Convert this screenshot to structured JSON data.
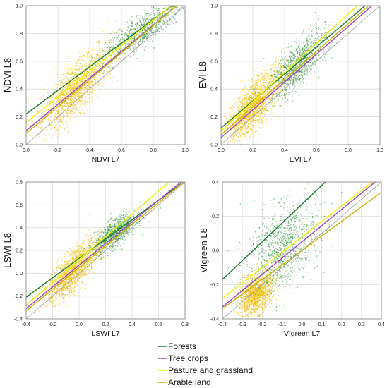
{
  "legend": {
    "placement": "bottom-center",
    "items": [
      {
        "label": "Forests",
        "color": "#1a7a2a"
      },
      {
        "label": "Tree crops",
        "color": "#a040c8"
      },
      {
        "label": "Pasture and grassland",
        "color": "#f2f200"
      },
      {
        "label": "Arable land",
        "color": "#c8b400"
      }
    ]
  },
  "chart_data": [
    {
      "type": "scatter",
      "xlabel": "NDVI L7",
      "ylabel": "NDVI L8",
      "xlim": [
        0.0,
        1.0
      ],
      "ylim": [
        0.0,
        1.0
      ],
      "xticks": [
        "0.0",
        "0.2",
        "0.4",
        "0.6",
        "0.8",
        "1.0"
      ],
      "yticks": [
        "0.0",
        "0.2",
        "0.4",
        "0.6",
        "0.8",
        "1.0"
      ],
      "grid": true,
      "reference_line": "1:1",
      "series": [
        {
          "name": "Forests",
          "slope": 0.85,
          "intercept": 0.22
        },
        {
          "name": "Tree crops",
          "slope": 0.95,
          "intercept": 0.1
        },
        {
          "name": "Pasture and grassland",
          "slope": 0.92,
          "intercept": 0.16
        },
        {
          "name": "Arable land",
          "slope": 0.97,
          "intercept": 0.08
        }
      ]
    },
    {
      "type": "scatter",
      "xlabel": "EVI L7",
      "ylabel": "EVI L8",
      "xlim": [
        0.0,
        1.0
      ],
      "ylim": [
        0.0,
        1.0
      ],
      "xticks": [
        "0.0",
        "0.2",
        "0.4",
        "0.6",
        "0.8",
        "1.0"
      ],
      "yticks": [
        "0.0",
        "0.2",
        "0.4",
        "0.6",
        "0.8",
        "1.0"
      ],
      "grid": true,
      "reference_line": "1:1",
      "series": [
        {
          "name": "Forests",
          "slope": 0.97,
          "intercept": 0.12
        },
        {
          "name": "Tree crops",
          "slope": 1.0,
          "intercept": 0.05
        },
        {
          "name": "Pasture and grassland",
          "slope": 1.05,
          "intercept": 0.1
        },
        {
          "name": "Arable land",
          "slope": 1.0,
          "intercept": 0.07
        }
      ]
    },
    {
      "type": "scatter",
      "xlabel": "LSWI L7",
      "ylabel": "LSWI L8",
      "xlim": [
        -0.4,
        0.8
      ],
      "ylim": [
        -0.4,
        0.8
      ],
      "xticks": [
        "-0.4",
        "-0.2",
        "0.0",
        "0.2",
        "0.4",
        "0.6",
        "0.8"
      ],
      "yticks": [
        "-0.4",
        "-0.2",
        "0.0",
        "0.2",
        "0.4",
        "0.6",
        "0.8"
      ],
      "grid": true,
      "reference_line": "1:1",
      "series": [
        {
          "name": "Forests",
          "slope": 0.85,
          "intercept": 0.13
        },
        {
          "name": "Tree crops",
          "slope": 0.95,
          "intercept": 0.07
        },
        {
          "name": "Pasture and grassland",
          "slope": 1.0,
          "intercept": 0.12
        },
        {
          "name": "Arable land",
          "slope": 0.95,
          "intercept": 0.05
        }
      ]
    },
    {
      "type": "scatter",
      "xlabel": "VIgreen L7",
      "ylabel": "VIgreen L8",
      "xlim": [
        -0.4,
        0.4
      ],
      "ylim": [
        -0.4,
        0.4
      ],
      "xticks": [
        "-0.4",
        "-0.3",
        "-0.2",
        "-0.1",
        "0.0",
        "0.1",
        "0.2",
        "0.3",
        "0.4"
      ],
      "yticks": [
        "-0.4",
        "-0.2",
        "0.0",
        "0.2",
        "0.4"
      ],
      "grid": true,
      "reference_line": "1:1",
      "series": [
        {
          "name": "Forests",
          "slope": 1.1,
          "intercept": 0.27
        },
        {
          "name": "Tree crops",
          "slope": 0.95,
          "intercept": 0.05
        },
        {
          "name": "Pasture and grassland",
          "slope": 0.9,
          "intercept": 0.08
        },
        {
          "name": "Arable land",
          "slope": 0.85,
          "intercept": 0.0
        }
      ]
    }
  ]
}
